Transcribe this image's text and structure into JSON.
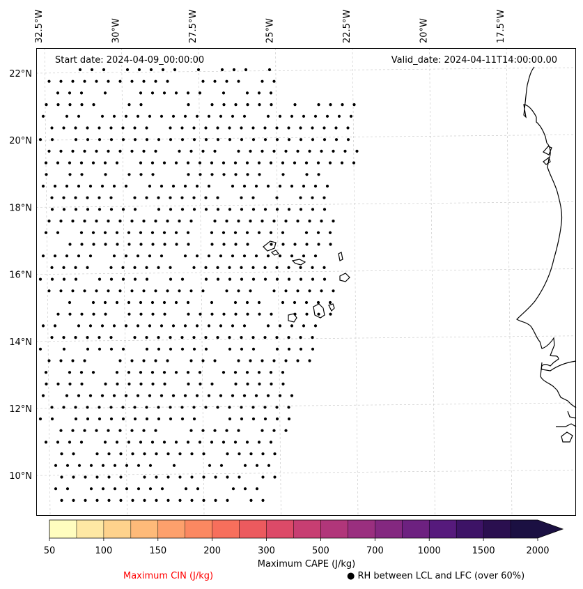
{
  "map": {
    "start_date": "Start date: 2024-04-09_00:00:00",
    "valid_date": "Valid_date: 2024-04-11T14:00:00.00",
    "lon_labels": [
      "32.5°W",
      "30°W",
      "27.5°W",
      "25°W",
      "22.5°W",
      "20°W",
      "17.5°W"
    ],
    "lat_labels": [
      "22°N",
      "20°N",
      "18°N",
      "16°N",
      "14°N",
      "12°N",
      "10°N"
    ],
    "lon_values": [
      -32.5,
      -30,
      -27.5,
      -25,
      -22.5,
      -20,
      -17.5
    ],
    "lat_values": [
      22,
      20,
      18,
      16,
      14,
      12,
      10
    ],
    "gridlines": true,
    "gridline_color": "#cccccc",
    "coast_color": "#000000",
    "marker_symbol": "dot",
    "marker_color": "#000000"
  },
  "colorbar": {
    "title": "Maximum CAPE (J/kg)",
    "tick_labels": [
      "50",
      "100",
      "150",
      "200",
      "300",
      "500",
      "700",
      "1000",
      "1500",
      "2000"
    ],
    "colors": [
      "#fffdbf",
      "#fee8a4",
      "#fed28c",
      "#feba79",
      "#fda06c",
      "#fb8861",
      "#f76f5c",
      "#ec5a5e",
      "#dc4a68",
      "#c73e72",
      "#b1367a",
      "#9a2f7f",
      "#842880",
      "#6d2180",
      "#561a7c",
      "#3d1366",
      "#2a0f4f",
      "#1b1042"
    ],
    "extend": "max"
  },
  "legend": {
    "cin_label": "Maximum CIN (J/kg)",
    "cin_color": "#ff0000",
    "rh_label": "RH between LCL and LFC (over 60%)",
    "rh_symbol": "●"
  }
}
